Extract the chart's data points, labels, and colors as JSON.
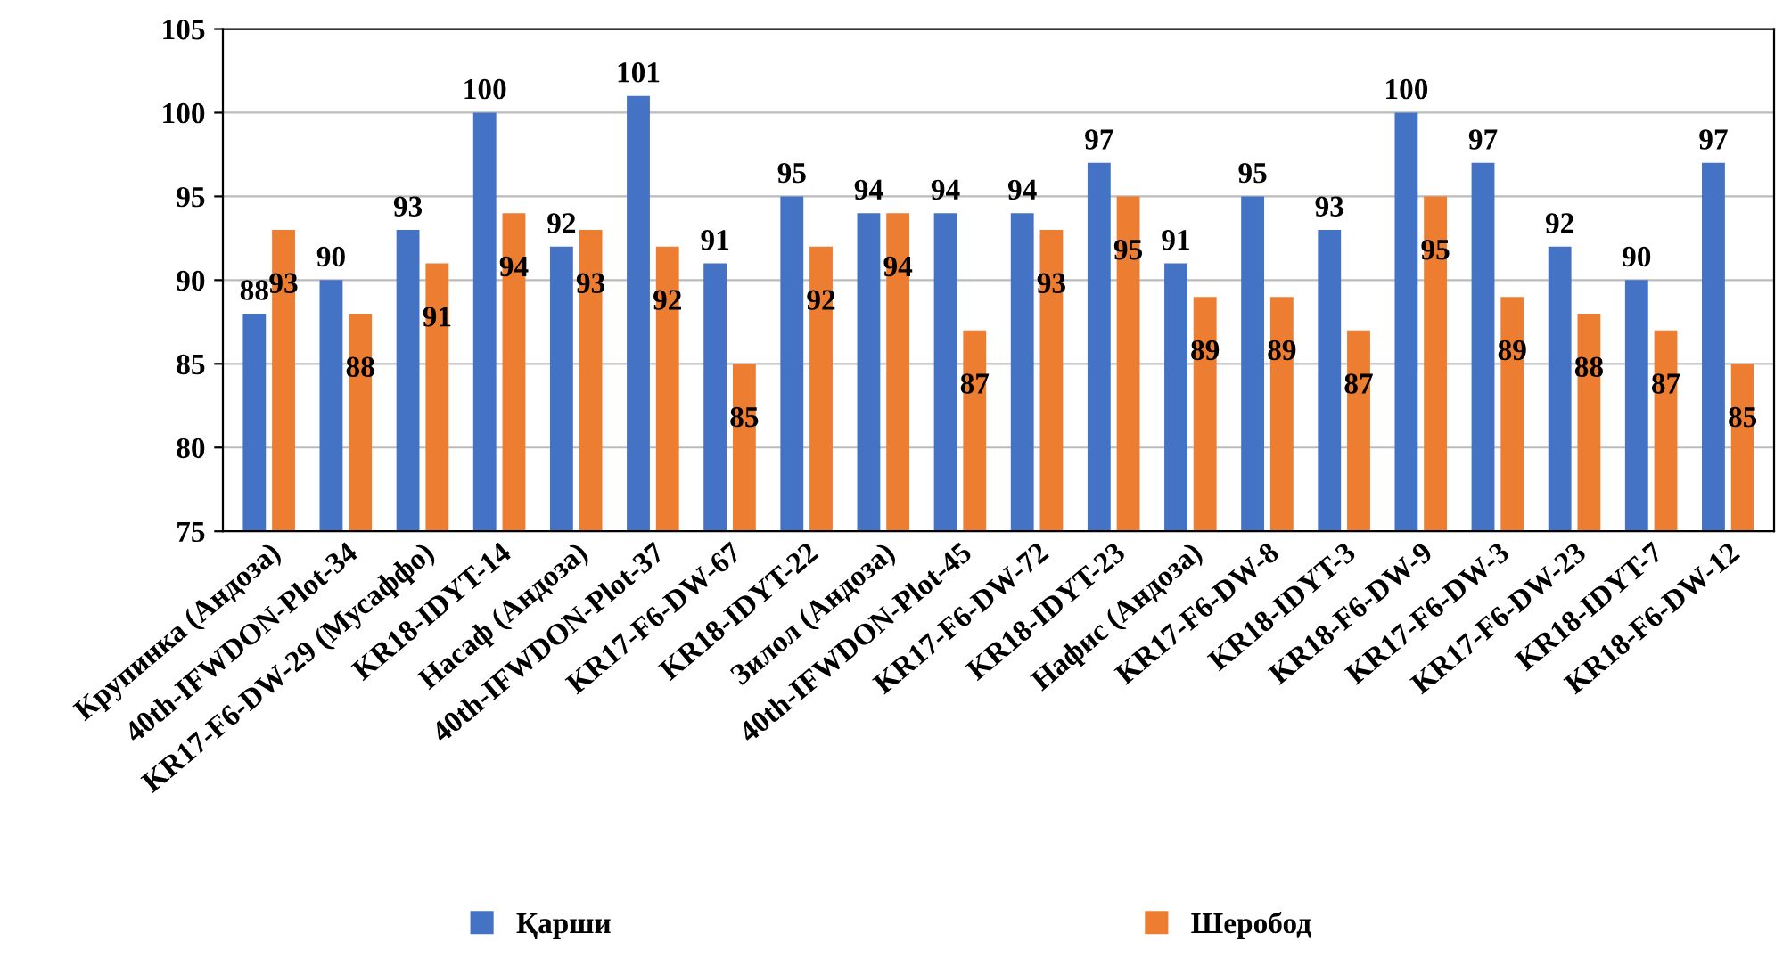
{
  "chart_data": {
    "type": "bar",
    "categories": [
      "Крупинка (Андоза)",
      "40th-IFWDON-Plot-34",
      "KR17-F6-DW-29 (Мусаффо)",
      "KR18-IDYT-14",
      "Насаф (Андоза)",
      "40th-IFWDON-Plot-37",
      "KR17-F6-DW-67",
      "KR18-IDYT-22",
      "Зилол (Андоза)",
      "40th-IFWDON-Plot-45",
      "KR17-F6-DW-72",
      "KR18-IDYT-23",
      "Нафис (Андоза)",
      "KR17-F6-DW-8",
      "KR18-IDYT-3",
      "KR18-F6-DW-9",
      "KR17-F6-DW-3",
      "KR17-F6-DW-23",
      "KR18-IDYT-7",
      "KR18-F6-DW-12"
    ],
    "series": [
      {
        "name": "Қарши",
        "color": "#4472c4",
        "values": [
          88,
          90,
          93,
          100,
          92,
          101,
          91,
          95,
          94,
          94,
          94,
          97,
          91,
          95,
          93,
          100,
          97,
          92,
          90,
          97
        ]
      },
      {
        "name": "Шеробод",
        "color": "#ed7d31",
        "values": [
          93,
          88,
          91,
          94,
          93,
          92,
          85,
          92,
          94,
          87,
          93,
          95,
          89,
          89,
          87,
          95,
          89,
          88,
          87,
          85
        ]
      }
    ],
    "ylim": [
      75,
      105
    ],
    "yticks": [
      75,
      80,
      85,
      90,
      95,
      100,
      105
    ],
    "grid": "y",
    "legend": "bottom",
    "data_labels": true
  }
}
